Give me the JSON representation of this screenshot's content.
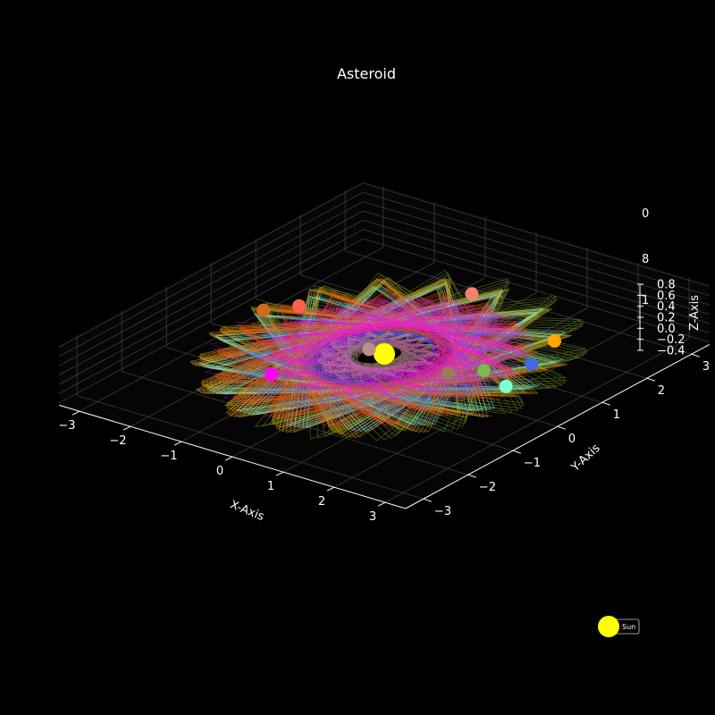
{
  "chart_data": {
    "type": "scatter3d",
    "title": "Asteroid",
    "xlabel": "X-Axis",
    "ylabel": "Y-Axis",
    "zlabel": "Z-Axis",
    "xlim": [
      -3.4,
      3.4
    ],
    "ylim": [
      -3.4,
      3.4
    ],
    "zlim": [
      -0.45,
      0.85
    ],
    "x_ticks": [
      "−3",
      "−2",
      "−1",
      "0",
      "1",
      "2",
      "3"
    ],
    "y_ticks": [
      "−3",
      "−2",
      "−1",
      "0",
      "1",
      "2",
      "3"
    ],
    "z_ticks": [
      "−0.4",
      "−0.2",
      "0.0",
      "0.2",
      "0.4",
      "0.6",
      "0.8"
    ],
    "z_ticks_clipped": [
      "1",
      "8",
      "0"
    ],
    "grid": true,
    "background": "#000000",
    "sun": {
      "name": "Sun",
      "color": "#ffff00"
    },
    "orbits": [
      {
        "color": "#8b008b",
        "a": 2.3,
        "e": 0.3,
        "w": 0.55,
        "inc": 0.12
      },
      {
        "color": "#ffa500",
        "a": 2.9,
        "e": 0.06,
        "w": 0.0,
        "inc": 0.05
      },
      {
        "color": "#daa520",
        "a": 3.05,
        "e": 0.05,
        "w": 0.8,
        "inc": 0.05
      },
      {
        "color": "#6b8e23",
        "a": 3.0,
        "e": 0.12,
        "w": 2.4,
        "inc": 0.1
      },
      {
        "color": "#7fffd4",
        "a": 2.9,
        "e": 0.06,
        "w": 1.2,
        "inc": 0.06
      },
      {
        "color": "#4169e1",
        "a": 2.3,
        "e": 0.1,
        "w": 1.0,
        "inc": 0.08
      },
      {
        "color": "#6a5acd",
        "a": 2.1,
        "e": 0.18,
        "w": 2.6,
        "inc": 0.07
      },
      {
        "color": "#ff4500",
        "a": 2.55,
        "e": 0.1,
        "w": 0.3,
        "inc": 0.05
      },
      {
        "color": "#ff00ff",
        "a": 2.05,
        "e": 0.15,
        "w": 3.9,
        "inc": 0.1
      },
      {
        "color": "#bc8f8f",
        "a": 0.95,
        "e": 0.15,
        "w": 0.2,
        "inc": 0.05
      }
    ],
    "planets": [
      {
        "color": "#fa8072",
        "x": -0.3,
        "y": 2.3,
        "z": 0.0
      },
      {
        "color": "#ffa500",
        "x": 1.85,
        "y": 1.7,
        "z": 0.0
      },
      {
        "color": "#ff6347",
        "x": -2.2,
        "y": 0.6,
        "z": 0.0
      },
      {
        "color": "#d2691e",
        "x": -2.55,
        "y": 0.2,
        "z": 0.0
      },
      {
        "color": "#ff00ff",
        "x": -0.95,
        "y": -1.45,
        "z": 0.0
      },
      {
        "color": "#bc8f8f",
        "x": -0.3,
        "y": 0.0,
        "z": 0.0
      },
      {
        "color": "#4169e1",
        "x": 2.1,
        "y": 0.9,
        "z": 0.0
      },
      {
        "color": "#7cba50",
        "x": 1.65,
        "y": 0.35,
        "z": 0.0
      },
      {
        "color": "#a0785a",
        "x": 1.25,
        "y": 0.0,
        "z": 0.0
      },
      {
        "color": "#7fffd4",
        "x": 2.3,
        "y": 0.1,
        "z": 0.0
      }
    ]
  }
}
